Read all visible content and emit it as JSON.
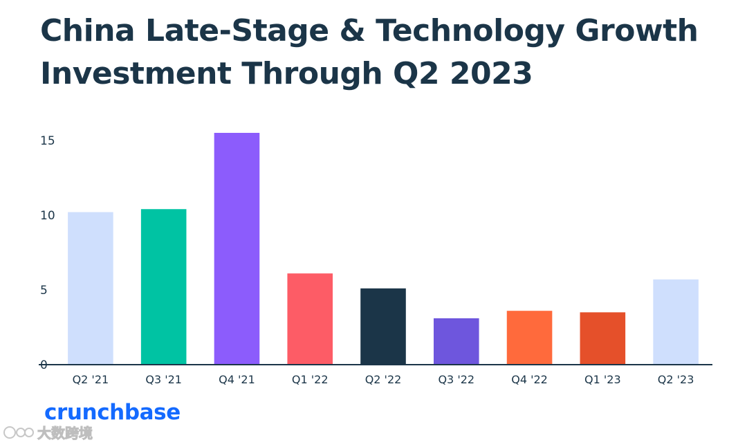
{
  "chart_data": {
    "type": "bar",
    "title": "China Late-Stage & Technology Growth Investment Through Q2 2023",
    "categories": [
      "Q2 '21",
      "Q3 '21",
      "Q4 '21",
      "Q1 '22",
      "Q2 '22",
      "Q3 '22",
      "Q4 '22",
      "Q1 '23",
      "Q2 '23"
    ],
    "values": [
      10.2,
      10.4,
      15.5,
      6.1,
      5.1,
      3.1,
      3.6,
      3.5,
      5.7
    ],
    "bar_colors": [
      "#cfdffd",
      "#00c3a3",
      "#8c5cfc",
      "#fd5c66",
      "#1b3548",
      "#6e56dd",
      "#ff6a3c",
      "#e5502a",
      "#cfdffd"
    ],
    "yticks": [
      0,
      5,
      10,
      15
    ],
    "ylim": [
      0,
      15.5
    ],
    "xlabel": "",
    "ylabel": "",
    "grid": false,
    "axis_color": "#1b3548"
  },
  "brand": {
    "logo_text": "crunchbase",
    "logo_color": "#146aff"
  },
  "watermark": {
    "text": "大数跨境"
  }
}
